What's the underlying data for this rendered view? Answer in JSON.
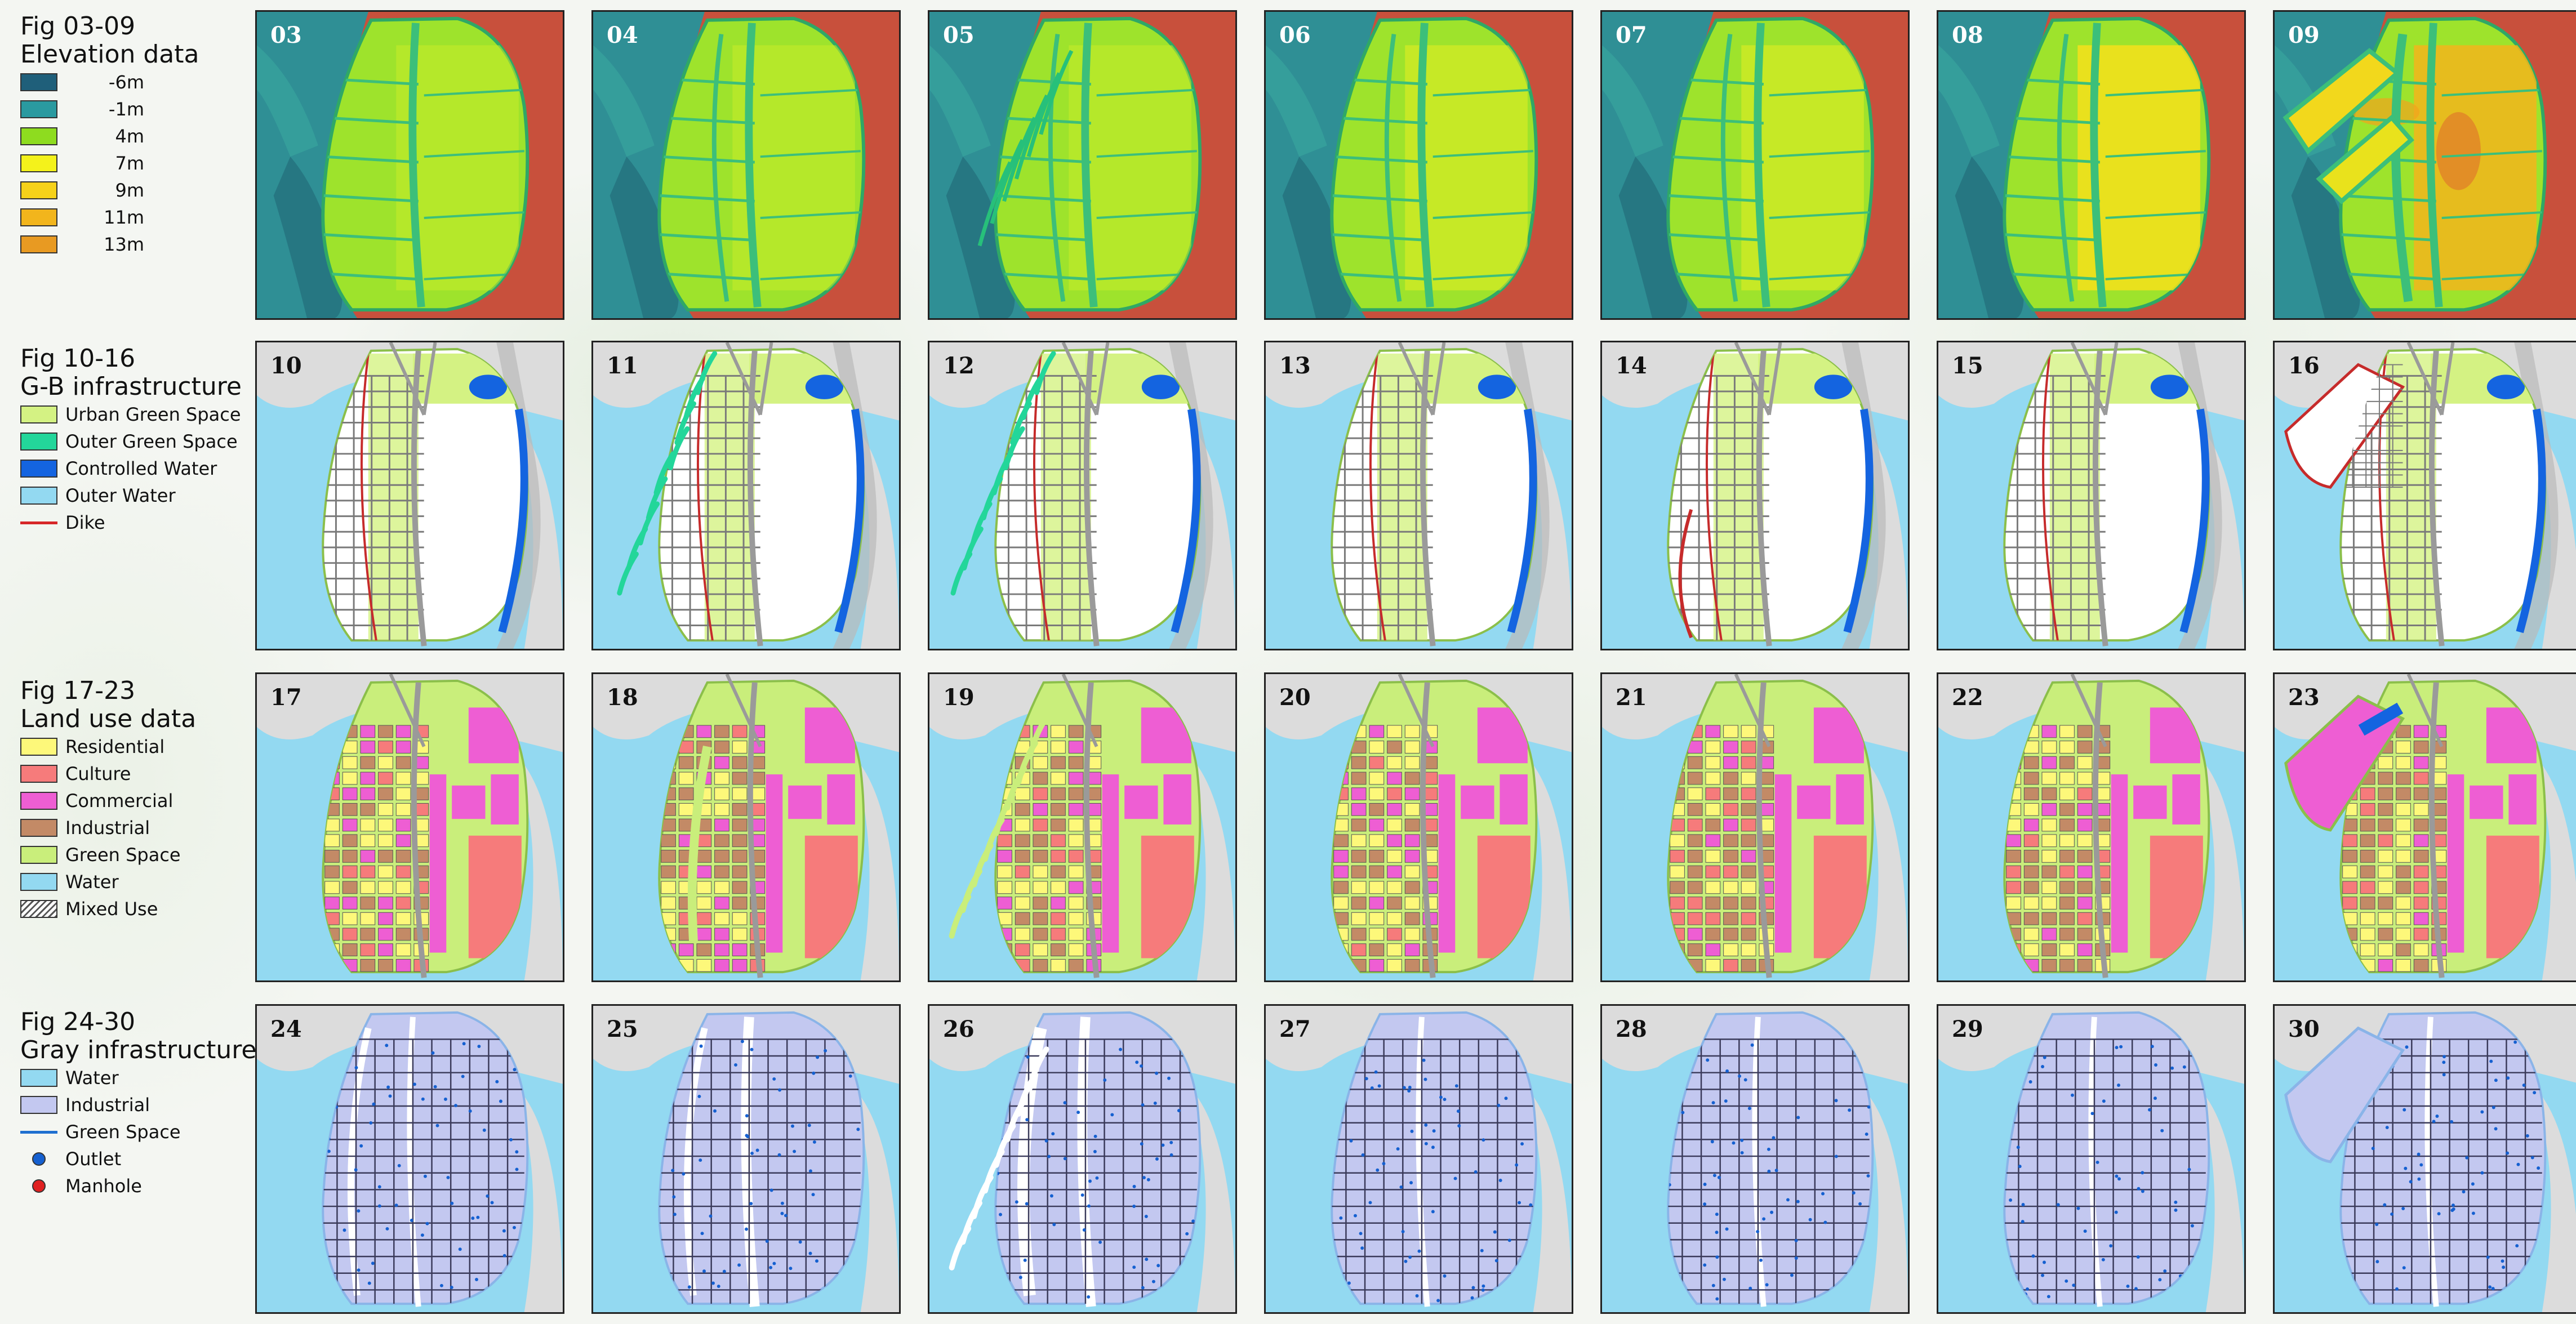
{
  "sections": [
    {
      "id": "elevation",
      "fig_label": "Fig 03-09",
      "subtitle": "Elevation data",
      "legend": [
        {
          "label": "-6m",
          "color": "#1f5f7a",
          "kind": "box"
        },
        {
          "label": "-1m",
          "color": "#2a9aa0",
          "kind": "box"
        },
        {
          "label": "4m",
          "color": "#8edc1f",
          "kind": "box"
        },
        {
          "label": "7m",
          "color": "#f4f21b",
          "kind": "box"
        },
        {
          "label": "9m",
          "color": "#f6d21a",
          "kind": "box"
        },
        {
          "label": "11m",
          "color": "#f2b51c",
          "kind": "box"
        },
        {
          "label": "13m",
          "color": "#e89a22",
          "kind": "box"
        }
      ],
      "panels": [
        "03",
        "04",
        "05",
        "06",
        "07",
        "08",
        "09"
      ]
    },
    {
      "id": "gb",
      "fig_label": "Fig 10-16",
      "subtitle": "G-B infrastructure",
      "legend": [
        {
          "label": "Urban Green Space",
          "color": "#d4f283",
          "kind": "box"
        },
        {
          "label": "Outer Green Space",
          "color": "#23d69a",
          "kind": "box"
        },
        {
          "label": "Controlled Water",
          "color": "#1464e0",
          "kind": "box"
        },
        {
          "label": "Outer Water",
          "color": "#93d9f1",
          "kind": "box"
        },
        {
          "label": "Dike",
          "color": "#d62728",
          "kind": "line"
        }
      ],
      "panels": [
        "10",
        "11",
        "12",
        "13",
        "14",
        "15",
        "16"
      ]
    },
    {
      "id": "landuse",
      "fig_label": "Fig 17-23",
      "subtitle": "Land use data",
      "legend": [
        {
          "label": "Residential",
          "color": "#fdf87a",
          "kind": "box"
        },
        {
          "label": "Culture",
          "color": "#f67b7b",
          "kind": "box"
        },
        {
          "label": "Commercial",
          "color": "#ee5ed3",
          "kind": "box"
        },
        {
          "label": "Industrial",
          "color": "#c38a66",
          "kind": "box"
        },
        {
          "label": "Green Space",
          "color": "#c9ee7b",
          "kind": "box"
        },
        {
          "label": "Water",
          "color": "#93d9f1",
          "kind": "box"
        },
        {
          "label": "Mixed Use",
          "color": "#ffffff",
          "kind": "hatch"
        }
      ],
      "panels": [
        "17",
        "18",
        "19",
        "20",
        "21",
        "22",
        "23"
      ]
    },
    {
      "id": "gray",
      "fig_label": "Fig 24-30",
      "subtitle": "Gray infrastructure",
      "legend": [
        {
          "label": "Water",
          "color": "#93d9f1",
          "kind": "box"
        },
        {
          "label": "Industrial",
          "color": "#c3c8f0",
          "kind": "box"
        },
        {
          "label": "Green Space",
          "color": "#1f6fd0",
          "kind": "line"
        },
        {
          "label": "Outlet",
          "color": "#1560d0",
          "kind": "dot"
        },
        {
          "label": "Manhole",
          "color": "#e02020",
          "kind": "dot"
        }
      ],
      "panels": [
        "24",
        "25",
        "26",
        "27",
        "28",
        "29",
        "30"
      ]
    }
  ]
}
